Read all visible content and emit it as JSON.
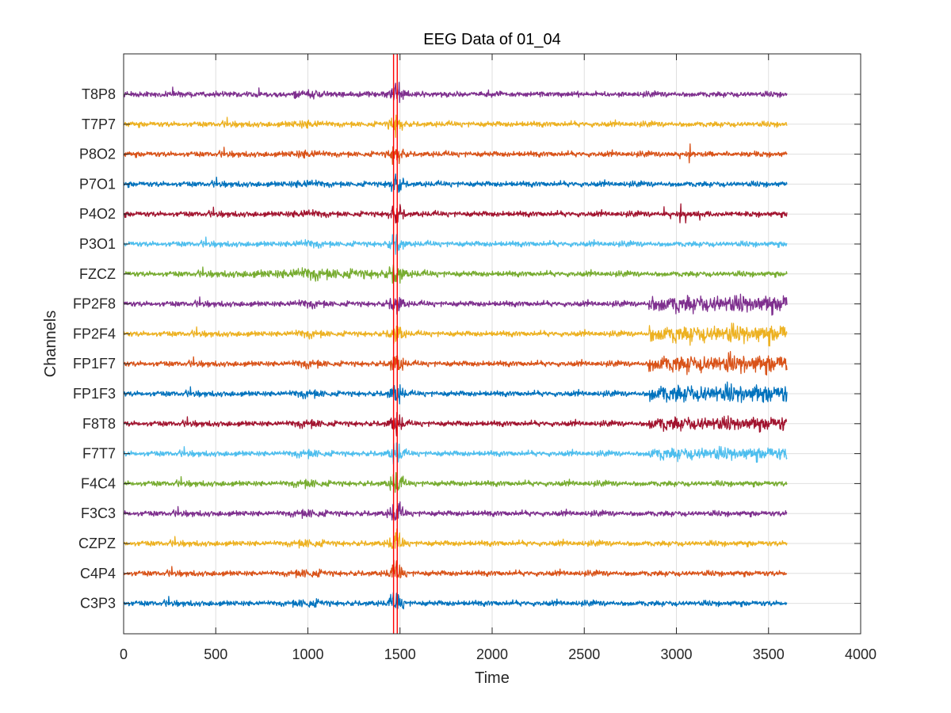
{
  "chart_data": {
    "type": "line",
    "title": "EEG Data of 01_04",
    "xlabel": "Time",
    "ylabel": "Channels",
    "xlim": [
      0,
      4000
    ],
    "xticks": [
      0,
      500,
      1000,
      1500,
      2000,
      2500,
      3000,
      3500,
      4000
    ],
    "grid": true,
    "legend": "none",
    "signal_duration": 3600,
    "channels": [
      "T8P8",
      "T7P7",
      "P8O2",
      "P7O1",
      "P4O2",
      "P3O1",
      "FZCZ",
      "FP2F8",
      "FP2F4",
      "FP1F7",
      "FP1F3",
      "F8T8",
      "F7T7",
      "F4C4",
      "F3C3",
      "CZPZ",
      "C4P4",
      "C3P3"
    ],
    "channel_colors": [
      "#7E2F8E",
      "#EDB120",
      "#D95319",
      "#0072BD",
      "#A2142F",
      "#4DBEEE",
      "#77AC30",
      "#7E2F8E",
      "#EDB120",
      "#D95319",
      "#0072BD",
      "#A2142F",
      "#4DBEEE",
      "#77AC30",
      "#7E2F8E",
      "#EDB120",
      "#D95319",
      "#0072BD"
    ],
    "markers": {
      "color": "#FF0000",
      "x": [
        1465,
        1485
      ]
    }
  }
}
